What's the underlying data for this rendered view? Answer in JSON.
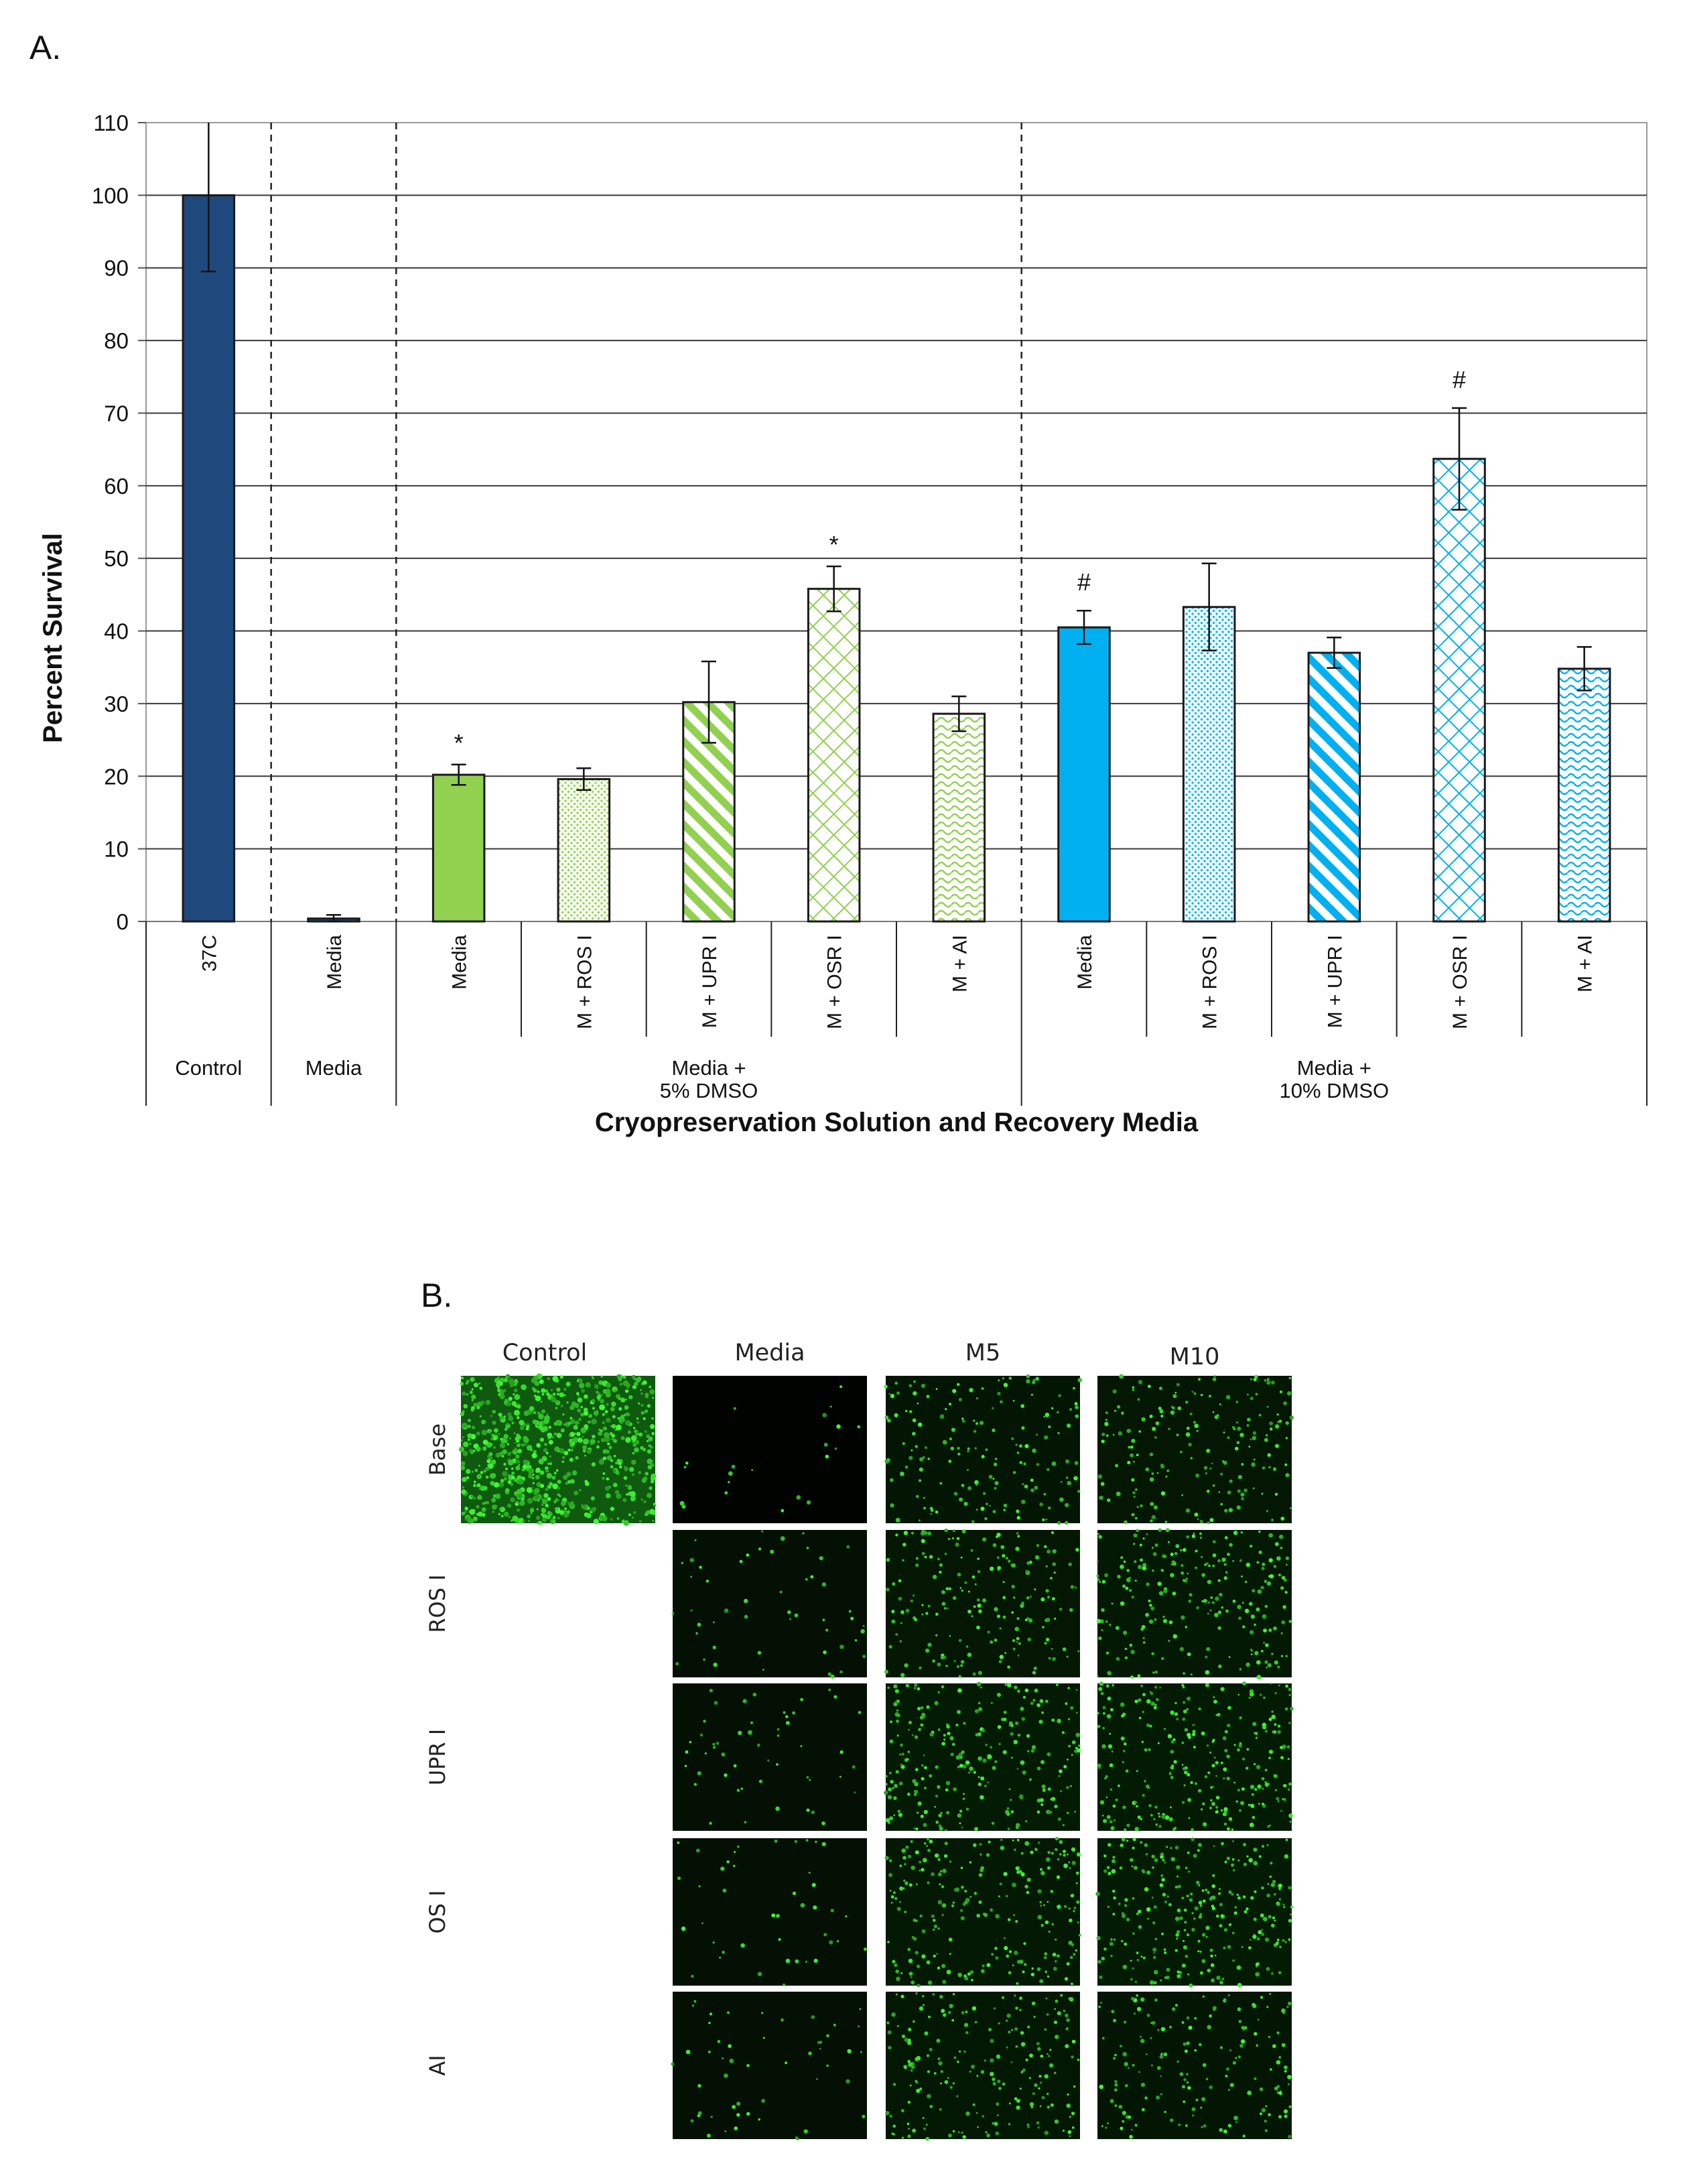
{
  "panel_a_label": "A.",
  "panel_b_label": "B.",
  "chart_data": {
    "type": "bar",
    "title": "",
    "xlabel": "Cryopreservation Solution and Recovery Media",
    "ylabel": "Percent Survival",
    "ylim": [
      0,
      110
    ],
    "yticks": [
      0,
      10,
      20,
      30,
      40,
      50,
      60,
      70,
      80,
      90,
      100,
      110
    ],
    "grid": true,
    "groups": [
      {
        "label": "Control",
        "size": 1
      },
      {
        "label": "Media",
        "size": 1
      },
      {
        "label": "Media +\n5% DMSO",
        "size": 5
      },
      {
        "label": "Media +\n10% DMSO",
        "size": 5
      }
    ],
    "bars": [
      {
        "label": "37C",
        "value": 100,
        "error": 10.5,
        "color": "#1f497d",
        "pattern": "solid",
        "annotation": ""
      },
      {
        "label": "Media",
        "value": 0.4,
        "error": 0.5,
        "color": "#1f497d",
        "pattern": "solid",
        "annotation": ""
      },
      {
        "label": "Media",
        "value": 20.2,
        "error": 1.4,
        "color": "#92d050",
        "pattern": "solid",
        "annotation": "*"
      },
      {
        "label": "M + ROS I",
        "value": 19.6,
        "error": 1.5,
        "color": "#92d050",
        "pattern": "dots",
        "annotation": ""
      },
      {
        "label": "M + UPR I",
        "value": 30.2,
        "error": 5.6,
        "color": "#92d050",
        "pattern": "diagonal",
        "annotation": ""
      },
      {
        "label": "M + OSR I",
        "value": 45.8,
        "error": 3.1,
        "color": "#92d050",
        "pattern": "lattice",
        "annotation": "*"
      },
      {
        "label": "M + AI",
        "value": 28.6,
        "error": 2.4,
        "color": "#92d050",
        "pattern": "wave",
        "annotation": ""
      },
      {
        "label": "Media",
        "value": 40.5,
        "error": 2.3,
        "color": "#00b0f0",
        "pattern": "solid",
        "annotation": "#"
      },
      {
        "label": "M + ROS I",
        "value": 43.3,
        "error": 6.0,
        "color": "#00b0f0",
        "pattern": "dots",
        "annotation": ""
      },
      {
        "label": "M + UPR I",
        "value": 37.0,
        "error": 2.1,
        "color": "#00b0f0",
        "pattern": "diagonal",
        "annotation": ""
      },
      {
        "label": "M + OSR I",
        "value": 63.7,
        "error": 7.0,
        "color": "#00b0f0",
        "pattern": "lattice",
        "annotation": "#"
      },
      {
        "label": "M + AI",
        "value": 34.8,
        "error": 3.0,
        "color": "#00b0f0",
        "pattern": "wave",
        "annotation": ""
      }
    ]
  },
  "micrographs": {
    "columns": [
      "Control",
      "Media",
      "M5",
      "M10"
    ],
    "rows": [
      "Base",
      "ROS I",
      "UPR I",
      "OS I",
      "AI"
    ],
    "brightness": [
      [
        0.95,
        0.05,
        0.4,
        0.45
      ],
      [
        null,
        0.12,
        0.45,
        0.55
      ],
      [
        null,
        0.12,
        0.6,
        0.65
      ],
      [
        null,
        0.1,
        0.55,
        0.65
      ],
      [
        null,
        0.12,
        0.5,
        0.4
      ]
    ],
    "colors": {
      "cell": "#39d23c",
      "background": "#0b2a0b"
    }
  }
}
